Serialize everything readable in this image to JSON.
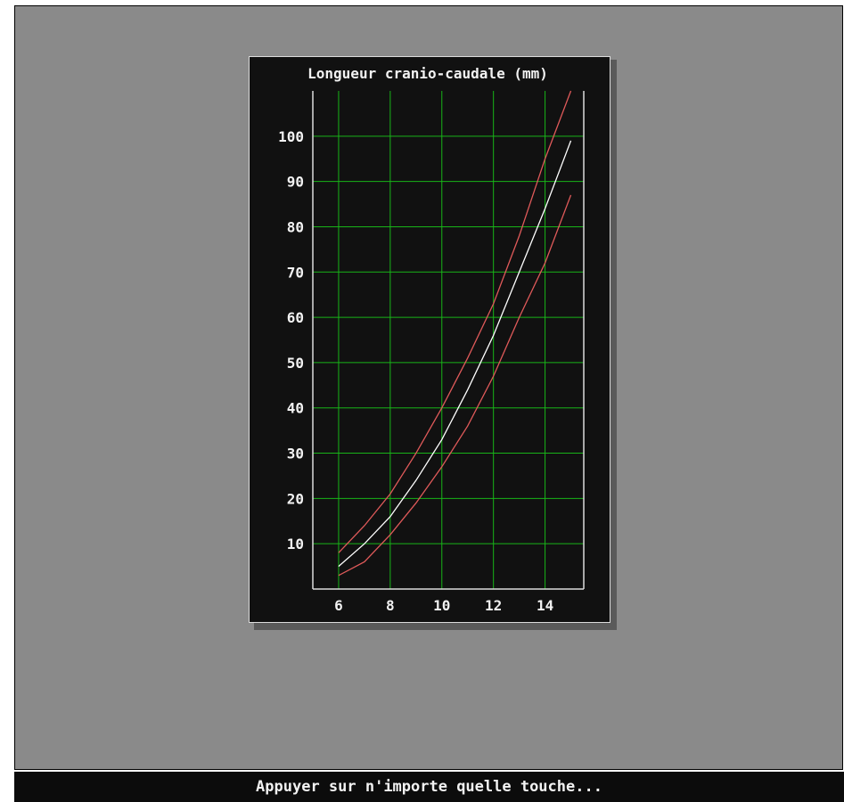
{
  "status_bar": {
    "message": "Appuyer sur n'importe quelle touche..."
  },
  "colors": {
    "screen_bg": "#8a8a8a",
    "chart_bg": "#111111",
    "grid": "#18b418",
    "axis": "#dcdcdc",
    "median_curve": "#ffffff",
    "bound_curves": "#e05a5a"
  },
  "chart_data": {
    "type": "line",
    "title": "Longueur cranio-caudale (mm)",
    "xlabel": "",
    "ylabel": "",
    "xlim": [
      5,
      15.5
    ],
    "ylim": [
      0,
      110
    ],
    "x_ticks": [
      6,
      8,
      10,
      12,
      14
    ],
    "y_ticks": [
      10,
      20,
      30,
      40,
      50,
      60,
      70,
      80,
      90,
      100
    ],
    "grid": true,
    "series": [
      {
        "color": "#ffffff",
        "x": [
          6,
          7,
          8,
          9,
          10,
          11,
          12,
          13,
          14,
          15
        ],
        "y": [
          5,
          10,
          16,
          24,
          33,
          44,
          56,
          70,
          84,
          99
        ]
      },
      {
        "color": "#e05a5a",
        "x": [
          6,
          7,
          8,
          9,
          10,
          11,
          12,
          13,
          14,
          15
        ],
        "y": [
          8,
          14,
          21,
          30,
          40,
          51,
          63,
          78,
          95,
          110
        ]
      },
      {
        "color": "#e05a5a",
        "x": [
          6,
          7,
          8,
          9,
          10,
          11,
          12,
          13,
          14,
          15
        ],
        "y": [
          3,
          6,
          12,
          19,
          27,
          36,
          47,
          60,
          72,
          87
        ]
      }
    ]
  }
}
